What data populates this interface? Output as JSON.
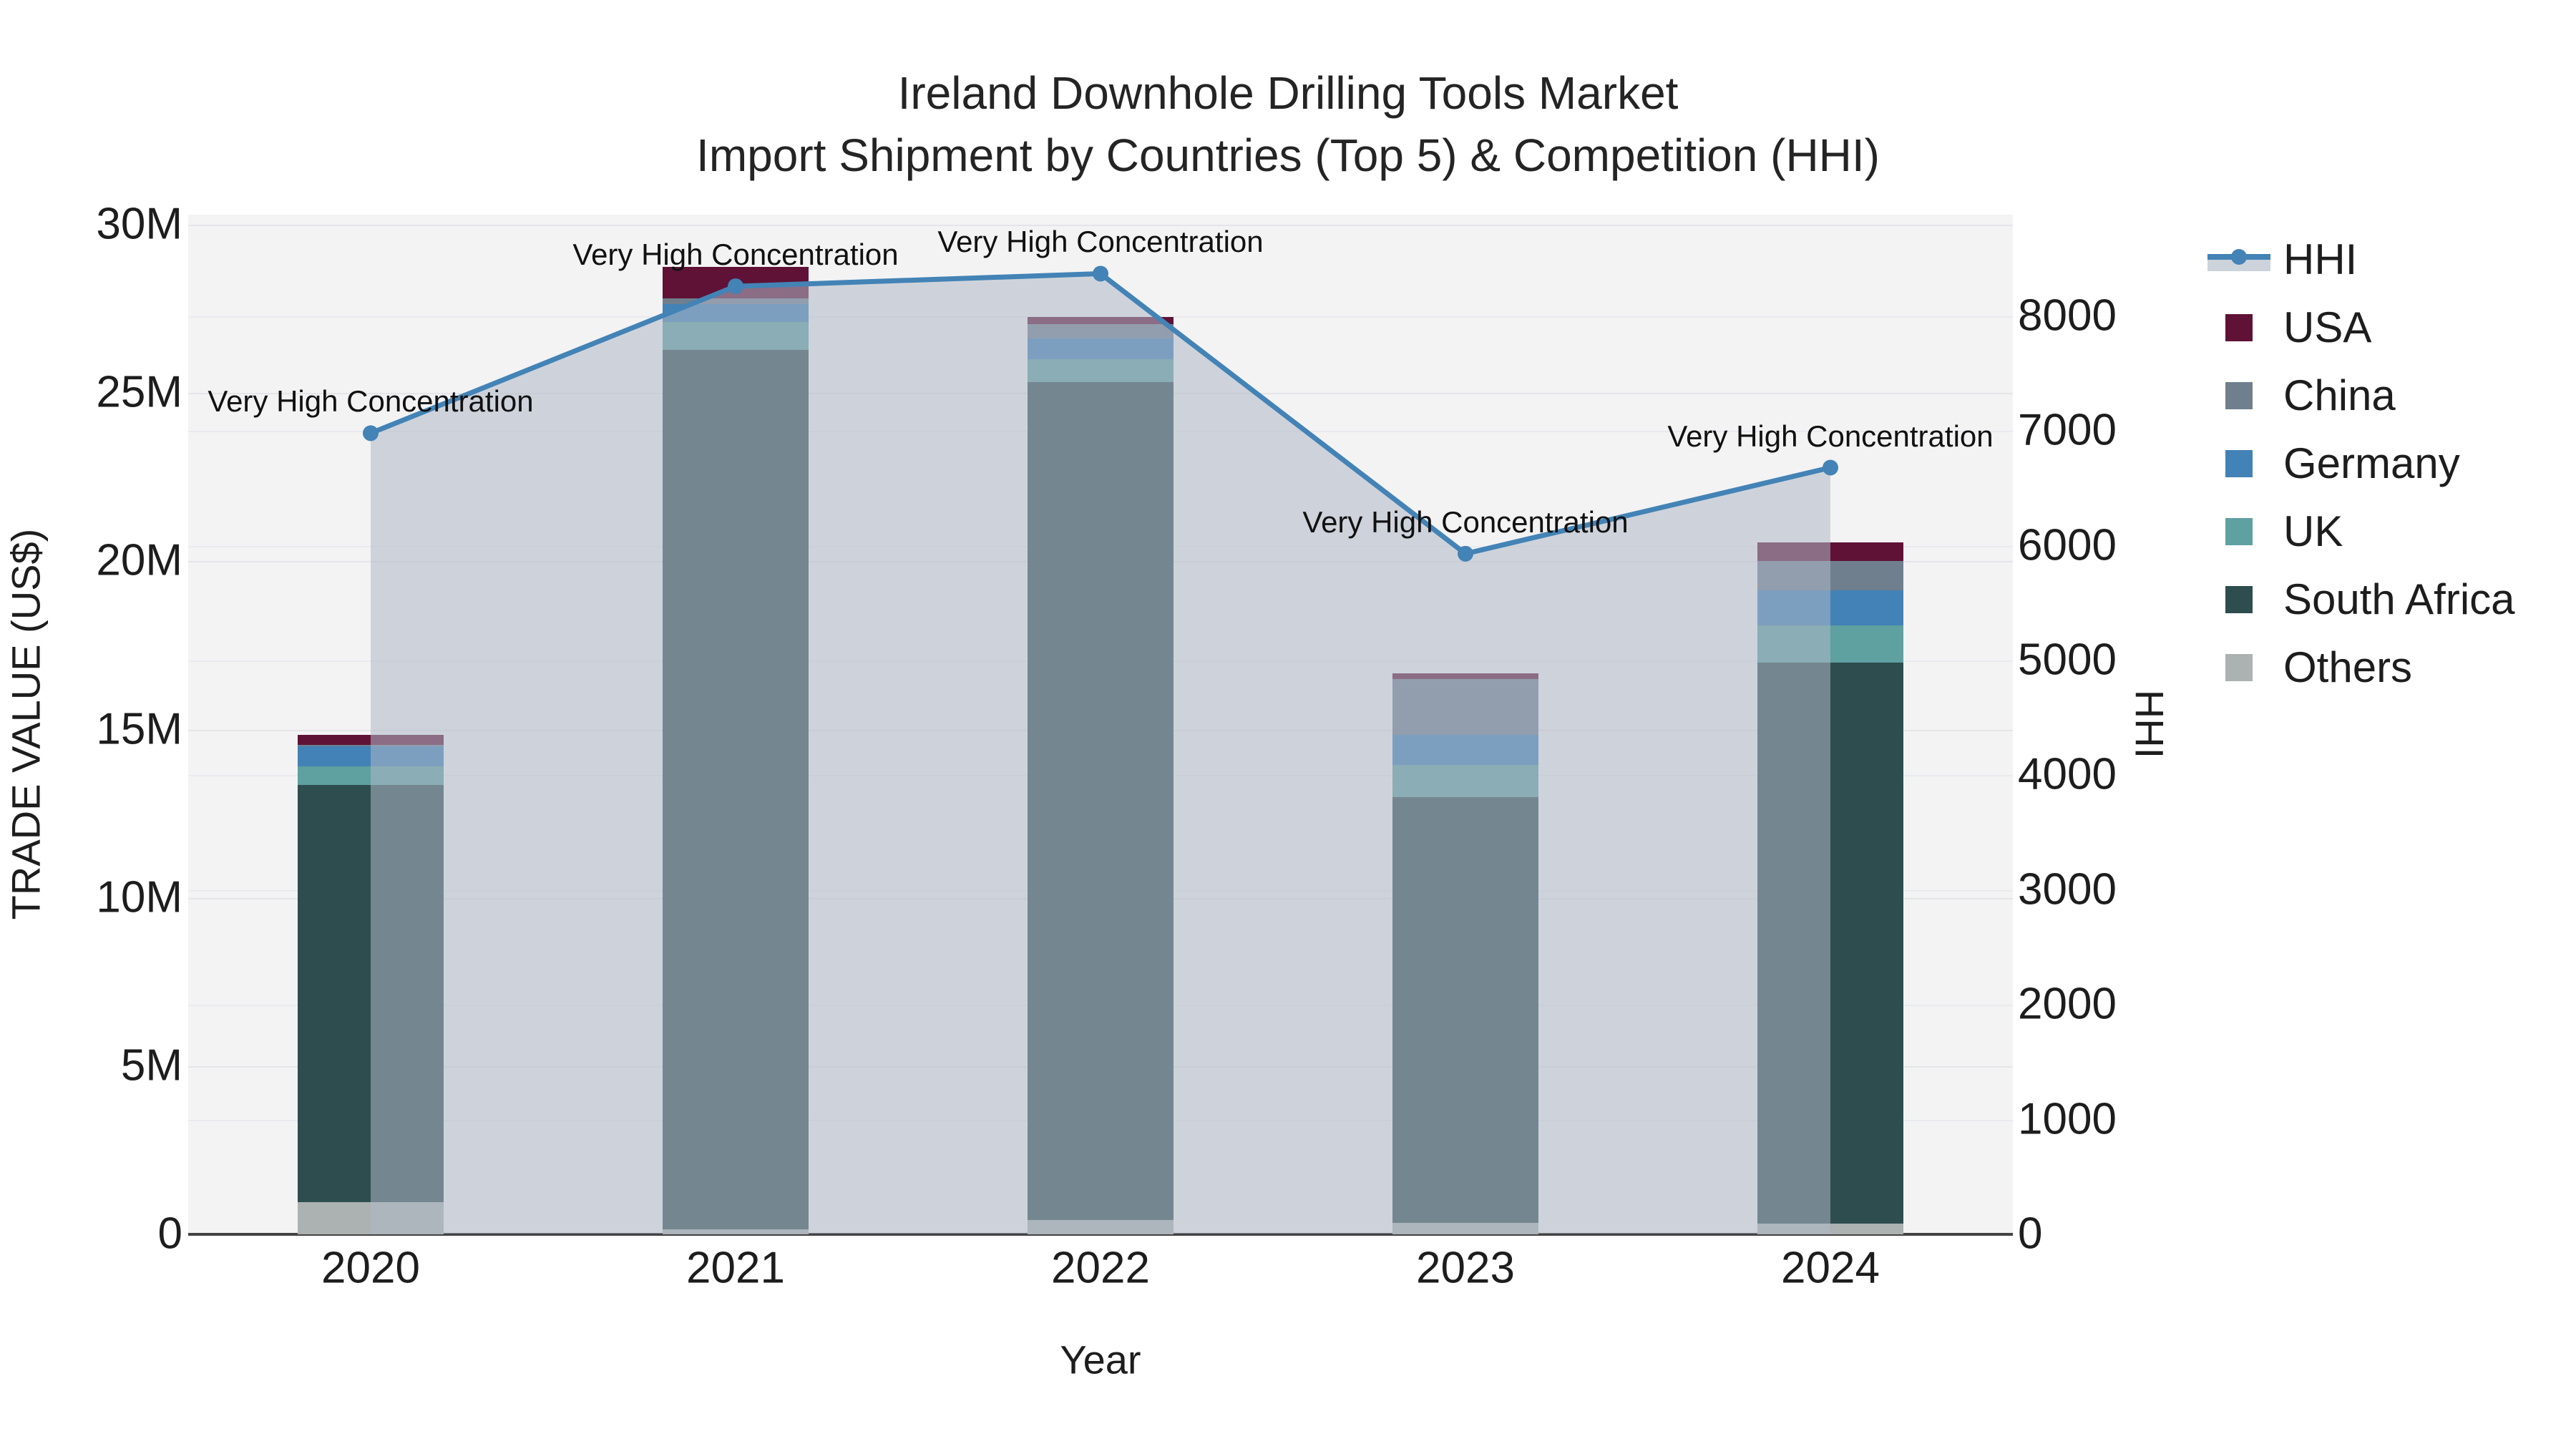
{
  "title": {
    "line1": "Ireland Downhole Drilling Tools Market",
    "line2": "Import Shipment by Countries (Top 5) & Competition (HHI)"
  },
  "axes": {
    "x_title": "Year",
    "y_left_title": "TRADE VALUE (US$)",
    "y_right_title": "HHI"
  },
  "legend": [
    {
      "label": "HHI",
      "type": "line",
      "color": "#4383b6",
      "band": "#ccd3da"
    },
    {
      "label": "USA",
      "type": "square",
      "color": "#5f1236"
    },
    {
      "label": "China",
      "type": "square",
      "color": "#6f7f8e"
    },
    {
      "label": "Germany",
      "type": "square",
      "color": "#4282b6"
    },
    {
      "label": "UK",
      "type": "square",
      "color": "#5fa0a1"
    },
    {
      "label": "South Africa",
      "type": "square",
      "color": "#2e4d4e"
    },
    {
      "label": "Others",
      "type": "square",
      "color": "#acb1b1"
    }
  ],
  "chart_data": {
    "type": "bar+line",
    "title": "Ireland Downhole Drilling Tools Market — Import Shipment by Countries (Top 5) & Competition (HHI)",
    "categories": [
      "2020",
      "2021",
      "2022",
      "2023",
      "2024"
    ],
    "xlabel": "Year",
    "ylabel_left": "TRADE VALUE (US$)",
    "ylabel_right": "HHI",
    "bar_value_unit": "Million US$",
    "stack_order_bottom_to_top": [
      "Others",
      "South Africa",
      "UK",
      "Germany",
      "China",
      "USA"
    ],
    "series": [
      {
        "name": "Others",
        "color": "#acb1b1",
        "values": [
          0.95,
          0.15,
          0.43,
          0.34,
          0.32
        ]
      },
      {
        "name": "South Africa",
        "color": "#2e4d4e",
        "values": [
          12.4,
          26.14,
          24.9,
          12.65,
          16.68
        ]
      },
      {
        "name": "UK",
        "color": "#5fa0a1",
        "values": [
          0.55,
          0.82,
          0.68,
          0.96,
          1.1
        ]
      },
      {
        "name": "Germany",
        "color": "#4282b6",
        "values": [
          0.6,
          0.53,
          0.62,
          0.9,
          1.03
        ]
      },
      {
        "name": "China",
        "color": "#6f7f8e",
        "values": [
          0.05,
          0.18,
          0.41,
          1.65,
          0.88
        ]
      },
      {
        "name": "USA",
        "color": "#5f1236",
        "values": [
          0.3,
          0.93,
          0.22,
          0.17,
          0.55
        ]
      }
    ],
    "bar_totals_millions": [
      14.85,
      28.75,
      27.26,
      16.67,
      20.56
    ],
    "line_series": {
      "name": "HHI",
      "color": "#4383b6",
      "area_fill": "rgba(174,184,198,0.55)",
      "values": [
        6980,
        8260,
        8370,
        5930,
        6680
      ]
    },
    "annotations": [
      "Very High Concentration",
      "Very High Concentration",
      "Very High Concentration",
      "Very High Concentration",
      "Very High Concentration"
    ],
    "y_left_axis": {
      "ticks": [
        0,
        5,
        10,
        15,
        20,
        25,
        30
      ],
      "tick_labels": [
        "0",
        "5M",
        "10M",
        "15M",
        "20M",
        "25M",
        "30M"
      ],
      "range": [
        0,
        30.3
      ]
    },
    "y_right_axis": {
      "ticks": [
        0,
        1000,
        2000,
        3000,
        4000,
        5000,
        6000,
        7000,
        8000
      ],
      "tick_labels": [
        "0",
        "1000",
        "2000",
        "3000",
        "4000",
        "5000",
        "6000",
        "7000",
        "8000"
      ],
      "range": [
        0,
        8884
      ]
    },
    "grid": true,
    "legend_position": "top-right"
  }
}
